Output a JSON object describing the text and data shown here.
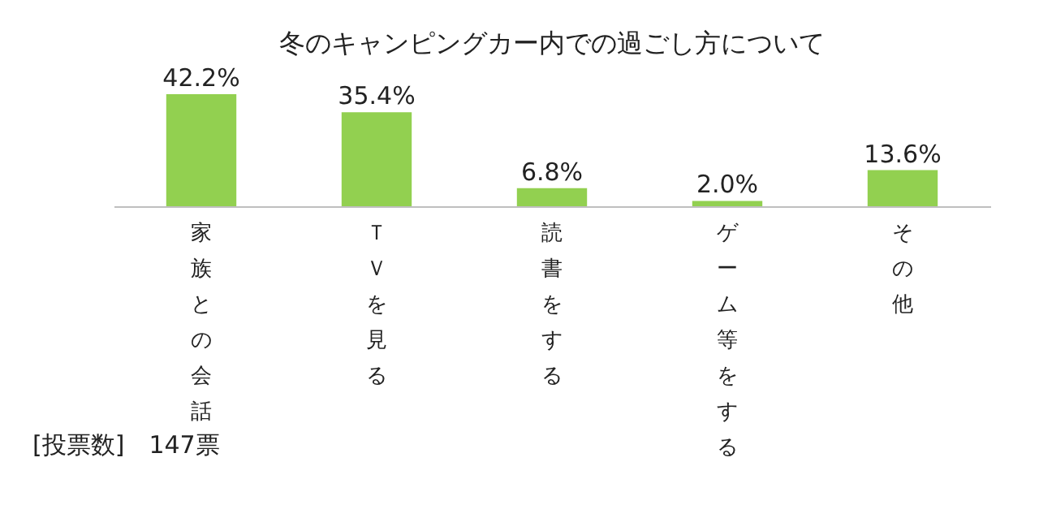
{
  "chart_data": {
    "type": "bar",
    "title": "冬のキャンピングカー内での過ごし方について",
    "categories": [
      "家族との会話",
      "ＴＶを見る",
      "読書をする",
      "ゲーム等をする",
      "その他"
    ],
    "values": [
      42.2,
      35.4,
      6.8,
      2.0,
      13.6
    ],
    "value_labels": [
      "42.2%",
      "35.4%",
      "6.8%",
      "2.0%",
      "13.6%"
    ],
    "color": "#92d050",
    "annotations": [
      "[投票数]　147票"
    ]
  }
}
